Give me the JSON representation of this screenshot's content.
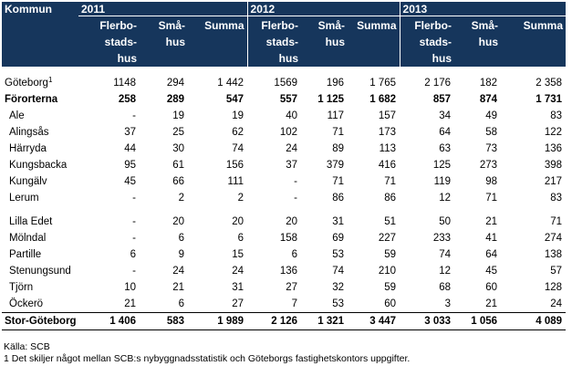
{
  "table": {
    "kommun_header": "Kommun",
    "years": [
      "2011",
      "2012",
      "2013"
    ],
    "sub_headers": [
      "Flerbo-\nstads-\nhus",
      "Små-\nhus",
      "Summa"
    ],
    "goteborg": {
      "name": "Göteborg",
      "sup": "1",
      "values": [
        "1148",
        "294",
        "1 442",
        "1569",
        "196",
        "1 765",
        "2 176",
        "182",
        "2 358"
      ]
    },
    "fororterna": {
      "name": "Förorterna",
      "values": [
        "258",
        "289",
        "547",
        "557",
        "1 125",
        "1 682",
        "857",
        "874",
        "1 731"
      ]
    },
    "group1": [
      {
        "name": "Ale",
        "values": [
          "-",
          "19",
          "19",
          "40",
          "117",
          "157",
          "34",
          "49",
          "83"
        ]
      },
      {
        "name": "Alingsås",
        "values": [
          "37",
          "25",
          "62",
          "102",
          "71",
          "173",
          "64",
          "58",
          "122"
        ]
      },
      {
        "name": "Härryda",
        "values": [
          "44",
          "30",
          "74",
          "24",
          "89",
          "113",
          "63",
          "73",
          "136"
        ]
      },
      {
        "name": "Kungsbacka",
        "values": [
          "95",
          "61",
          "156",
          "37",
          "379",
          "416",
          "125",
          "273",
          "398"
        ]
      },
      {
        "name": "Kungälv",
        "values": [
          "45",
          "66",
          "111",
          "-",
          "71",
          "71",
          "119",
          "98",
          "217"
        ]
      },
      {
        "name": "Lerum",
        "values": [
          "-",
          "2",
          "2",
          "-",
          "86",
          "86",
          "12",
          "71",
          "83"
        ]
      }
    ],
    "group2": [
      {
        "name": "Lilla Edet",
        "values": [
          "-",
          "20",
          "20",
          "20",
          "31",
          "51",
          "50",
          "21",
          "71"
        ]
      },
      {
        "name": "Mölndal",
        "values": [
          "-",
          "6",
          "6",
          "158",
          "69",
          "227",
          "233",
          "41",
          "274"
        ]
      },
      {
        "name": "Partille",
        "values": [
          "6",
          "9",
          "15",
          "6",
          "53",
          "59",
          "74",
          "64",
          "138"
        ]
      },
      {
        "name": "Stenungsund",
        "values": [
          "-",
          "24",
          "24",
          "136",
          "74",
          "210",
          "12",
          "45",
          "57"
        ]
      },
      {
        "name": "Tjörn",
        "values": [
          "10",
          "21",
          "31",
          "27",
          "32",
          "59",
          "68",
          "60",
          "128"
        ]
      },
      {
        "name": "Öckerö",
        "values": [
          "21",
          "6",
          "27",
          "7",
          "53",
          "60",
          "3",
          "21",
          "24"
        ]
      }
    ],
    "total": {
      "name": "Stor-Göteborg",
      "values": [
        "1 406",
        "583",
        "1 989",
        "2 126",
        "1 321",
        "3 447",
        "3 033",
        "1 056",
        "4 089"
      ]
    }
  },
  "notes": {
    "source": "Källa:  SCB",
    "footnote": "1  Det skiljer något mellan SCB:s nybyggnadsstatistik och Göteborgs fastighetskontors uppgifter."
  }
}
